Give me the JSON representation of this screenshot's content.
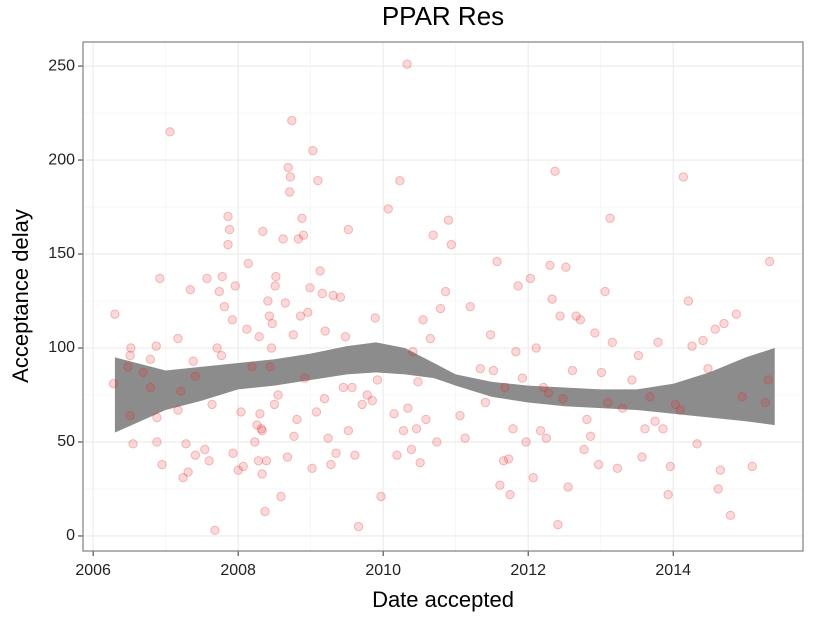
{
  "chart_data": {
    "type": "scatter",
    "title": "PPAR Res",
    "xlabel": "Date accepted",
    "ylabel": "Acceptance delay",
    "xlim": [
      2005.86,
      2015.79
    ],
    "ylim": [
      -8,
      262.8
    ],
    "xticks": [
      2006,
      2008,
      2010,
      2012,
      2014
    ],
    "yticks": [
      0,
      50,
      100,
      150,
      200,
      250
    ],
    "grid": true,
    "color": "#e8262a",
    "alpha": 0.18,
    "x": [
      2006.3,
      2006.28,
      2006.48,
      2006.51,
      2006.52,
      2006.51,
      2006.55,
      2006.69,
      2006.79,
      2006.79,
      2006.87,
      2006.88,
      2006.88,
      2006.95,
      2006.92,
      2007.06,
      2007.17,
      2007.17,
      2007.21,
      2007.24,
      2007.28,
      2007.34,
      2007.31,
      2007.41,
      2007.41,
      2007.38,
      2007.54,
      2007.57,
      2007.6,
      2007.64,
      2007.68,
      2007.71,
      2007.74,
      2007.77,
      2007.78,
      2007.81,
      2007.86,
      2007.86,
      2007.88,
      2007.92,
      2007.93,
      2007.96,
      2008.0,
      2008.04,
      2008.07,
      2008.12,
      2008.14,
      2008.19,
      2008.23,
      2008.26,
      2008.28,
      2008.29,
      2008.3,
      2008.32,
      2008.33,
      2008.33,
      2008.34,
      2008.37,
      2008.39,
      2008.41,
      2008.43,
      2008.44,
      2008.46,
      2008.47,
      2008.5,
      2008.51,
      2008.52,
      2008.55,
      2008.59,
      2008.62,
      2008.65,
      2008.68,
      2008.69,
      2008.71,
      2008.72,
      2008.74,
      2008.76,
      2008.77,
      2008.81,
      2008.83,
      2008.86,
      2008.88,
      2008.9,
      2008.92,
      2008.96,
      2008.99,
      2009.02,
      2009.03,
      2009.08,
      2009.1,
      2009.13,
      2009.16,
      2009.19,
      2009.2,
      2009.24,
      2009.28,
      2009.31,
      2009.35,
      2009.41,
      2009.45,
      2009.48,
      2009.52,
      2009.52,
      2009.57,
      2009.61,
      2009.66,
      2009.71,
      2009.78,
      2009.85,
      2009.89,
      2009.92,
      2009.97,
      2010.07,
      2010.15,
      2010.19,
      2010.23,
      2010.28,
      2010.33,
      2010.34,
      2010.39,
      2010.41,
      2010.46,
      2010.48,
      2010.51,
      2010.55,
      2010.59,
      2010.65,
      2010.69,
      2010.74,
      2010.79,
      2010.86,
      2010.9,
      2010.94,
      2011.06,
      2011.13,
      2011.2,
      2011.34,
      2011.41,
      2011.48,
      2011.52,
      2011.57,
      2011.61,
      2011.66,
      2011.68,
      2011.73,
      2011.75,
      2011.79,
      2011.83,
      2011.86,
      2011.92,
      2011.97,
      2012.03,
      2012.07,
      2012.11,
      2012.17,
      2012.21,
      2012.25,
      2012.28,
      2012.3,
      2012.33,
      2012.37,
      2012.41,
      2012.44,
      2012.48,
      2012.52,
      2012.55,
      2012.61,
      2012.66,
      2012.72,
      2012.77,
      2012.81,
      2012.86,
      2012.92,
      2012.97,
      2013.01,
      2013.06,
      2013.1,
      2013.13,
      2013.16,
      2013.23,
      2013.3,
      2013.43,
      2013.52,
      2013.57,
      2013.61,
      2013.68,
      2013.75,
      2013.79,
      2013.86,
      2013.93,
      2013.96,
      2014.03,
      2014.1,
      2014.14,
      2014.21,
      2014.26,
      2014.33,
      2014.41,
      2014.48,
      2014.58,
      2014.62,
      2014.65,
      2014.7,
      2014.79,
      2014.87,
      2014.95,
      2015.09,
      2015.27,
      2015.31,
      2015.33
    ],
    "values": [
      118,
      81,
      90,
      96,
      100,
      64,
      49,
      87,
      94,
      79,
      101,
      63,
      50,
      38,
      137,
      215,
      67,
      105,
      77,
      31,
      49,
      131,
      34,
      43,
      85,
      93,
      46,
      137,
      40,
      70,
      3,
      100,
      130,
      96,
      138,
      122,
      170,
      155,
      163,
      115,
      44,
      133,
      35,
      66,
      37,
      110,
      145,
      90,
      50,
      59,
      40,
      106,
      65,
      57,
      56,
      33,
      162,
      13,
      40,
      125,
      117,
      90,
      100,
      113,
      70,
      133,
      138,
      75,
      21,
      158,
      124,
      42,
      196,
      183,
      191,
      221,
      107,
      53,
      62,
      158,
      117,
      169,
      160,
      84,
      119,
      132,
      36,
      205,
      66,
      189,
      141,
      129,
      73,
      109,
      52,
      38,
      128,
      44,
      127,
      79,
      106,
      56,
      163,
      79,
      43,
      5,
      70,
      75,
      72,
      116,
      83,
      21,
      174,
      65,
      43,
      189,
      56,
      251,
      68,
      46,
      98,
      57,
      82,
      39,
      115,
      62,
      105,
      160,
      50,
      121,
      130,
      168,
      155,
      64,
      52,
      122,
      89,
      71,
      107,
      88,
      146,
      27,
      40,
      79,
      41,
      22,
      57,
      98,
      133,
      84,
      50,
      137,
      31,
      100,
      56,
      79,
      52,
      76,
      144,
      126,
      194,
      6,
      117,
      73,
      143,
      26,
      88,
      117,
      115,
      46,
      62,
      53,
      108,
      38,
      87,
      130,
      71,
      169,
      103,
      36,
      68,
      83,
      96,
      42,
      57,
      74,
      61,
      103,
      57,
      22,
      37,
      70,
      67,
      191,
      125,
      101,
      49,
      104,
      89,
      110,
      25,
      35,
      113,
      11,
      118,
      74,
      37,
      71,
      83,
      146
    ],
    "band": {
      "color": "#8c8c8c",
      "x": [
        2006.3,
        2007.0,
        2007.5,
        2008.0,
        2008.5,
        2009.0,
        2009.5,
        2009.9,
        2010.3,
        2010.7,
        2011.0,
        2011.5,
        2012.0,
        2012.5,
        2013.0,
        2013.5,
        2014.0,
        2014.5,
        2015.0,
        2015.4
      ],
      "upper": [
        95,
        88,
        90,
        92,
        94,
        97,
        101,
        103,
        100,
        92,
        86,
        82,
        80,
        79,
        78,
        78,
        81,
        87,
        95,
        100
      ],
      "lower": [
        55,
        67,
        72,
        78,
        80,
        83,
        86,
        87,
        86,
        84,
        80,
        74,
        71,
        69,
        68,
        67,
        65,
        63,
        61,
        59
      ]
    }
  }
}
